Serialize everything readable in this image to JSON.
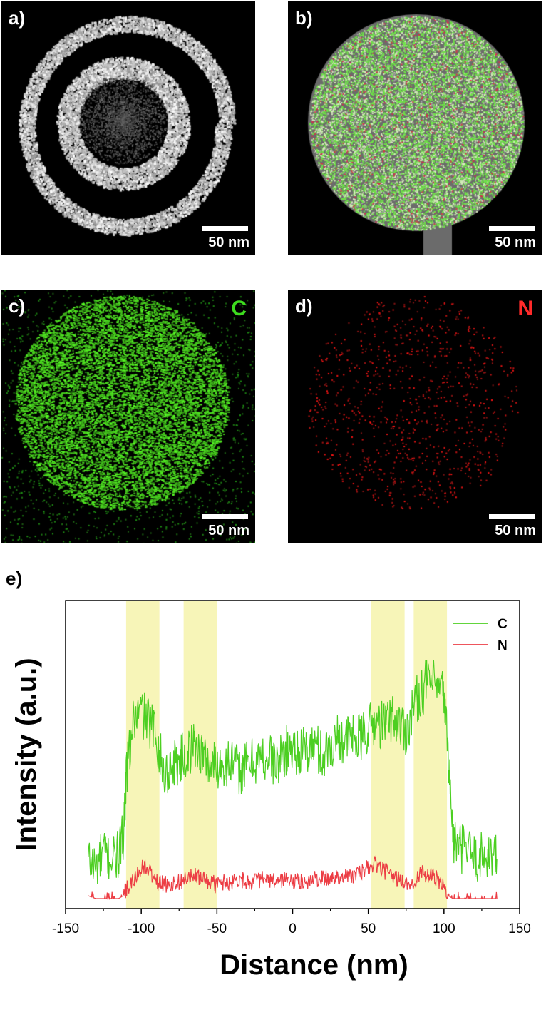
{
  "panels": [
    {
      "id": "a",
      "label": "a)",
      "scale_bar": "50 nm",
      "element": ""
    },
    {
      "id": "b",
      "label": "b)",
      "scale_bar": "50 nm",
      "element": ""
    },
    {
      "id": "c",
      "label": "c)",
      "scale_bar": "50 nm",
      "element": "C",
      "element_color": "#3ddc1e"
    },
    {
      "id": "d",
      "label": "d)",
      "scale_bar": "50 nm",
      "element": "N",
      "element_color": "#ff2a2a"
    }
  ],
  "chart_label": "e)",
  "chart_data": {
    "type": "line",
    "title": "",
    "xlabel": "Distance (nm)",
    "ylabel": "Intensity (a.u.)",
    "xlim": [
      -150,
      150
    ],
    "xticks": [
      -150,
      -100,
      -50,
      0,
      50,
      100,
      150
    ],
    "ylim": [
      0,
      100
    ],
    "yticks_shown": false,
    "legend_position": "top-right",
    "highlight_bands": [
      [
        -110,
        -88
      ],
      [
        -72,
        -50
      ],
      [
        52,
        74
      ],
      [
        80,
        102
      ]
    ],
    "highlight_color": "#f7f5b8",
    "series": [
      {
        "name": "C",
        "color": "#4ccf21",
        "x": [
          -135,
          -130,
          -125,
          -120,
          -115,
          -112,
          -110,
          -105,
          -100,
          -95,
          -90,
          -85,
          -80,
          -75,
          -70,
          -65,
          -60,
          -55,
          -50,
          -45,
          -40,
          -35,
          -30,
          -25,
          -20,
          -15,
          -10,
          -5,
          0,
          5,
          10,
          15,
          20,
          25,
          30,
          35,
          40,
          45,
          50,
          55,
          60,
          65,
          70,
          75,
          80,
          85,
          90,
          95,
          100,
          103,
          106,
          110,
          115,
          120,
          125,
          130,
          135
        ],
        "y": [
          14,
          11,
          16,
          14,
          15,
          22,
          42,
          63,
          66,
          62,
          58,
          43,
          47,
          49,
          50,
          55,
          51,
          47,
          47,
          48,
          48,
          45,
          47,
          49,
          49,
          50,
          47,
          52,
          53,
          52,
          52,
          54,
          50,
          54,
          57,
          56,
          57,
          56,
          60,
          62,
          61,
          64,
          62,
          59,
          68,
          73,
          77,
          74,
          72,
          50,
          21,
          17,
          18,
          14,
          15,
          16,
          14
        ]
      },
      {
        "name": "N",
        "color": "#ec3d44",
        "x": [
          -135,
          -130,
          -125,
          -120,
          -115,
          -112,
          -110,
          -105,
          -100,
          -95,
          -90,
          -85,
          -80,
          -75,
          -70,
          -65,
          -60,
          -55,
          -50,
          -45,
          -40,
          -35,
          -30,
          -25,
          -20,
          -15,
          -10,
          -5,
          0,
          5,
          10,
          15,
          20,
          25,
          30,
          35,
          40,
          45,
          50,
          55,
          60,
          65,
          70,
          75,
          80,
          85,
          90,
          95,
          100,
          103,
          106,
          110,
          115,
          120,
          125,
          130,
          135
        ],
        "y": [
          1,
          0,
          0,
          0,
          0,
          1,
          3,
          6,
          11,
          10,
          6,
          5,
          5,
          6,
          7,
          8,
          7,
          6,
          5,
          6,
          6,
          7,
          6,
          6,
          7,
          6,
          6,
          7,
          6,
          6,
          6,
          7,
          7,
          7,
          8,
          8,
          8,
          9,
          11,
          12,
          10,
          8,
          7,
          5,
          6,
          9,
          8,
          7,
          4,
          1,
          0,
          0,
          0,
          0,
          0,
          0,
          0
        ]
      }
    ]
  }
}
